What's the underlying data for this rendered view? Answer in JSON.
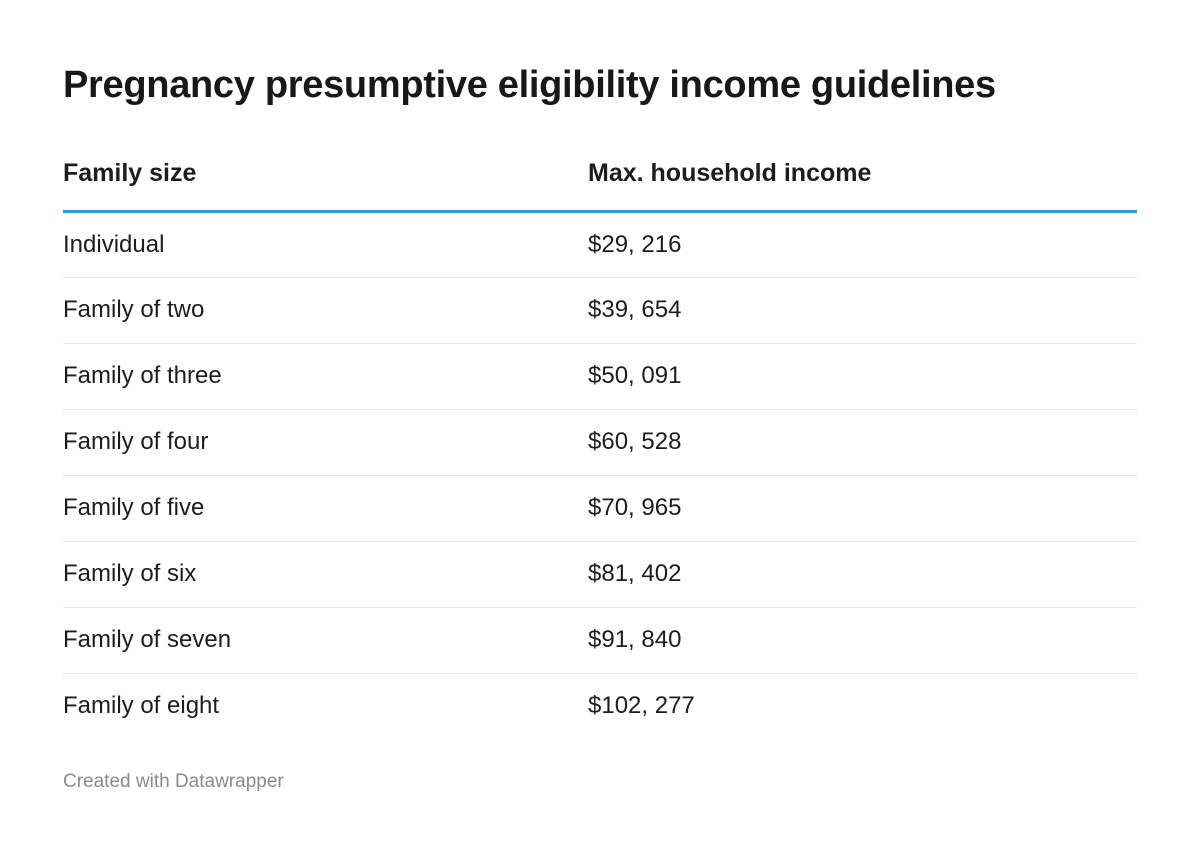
{
  "chart_data": {
    "type": "table",
    "title": "Pregnancy presumptive eligibility income guidelines",
    "columns": [
      "Family size",
      "Max. household income"
    ],
    "rows": [
      [
        "Individual",
        "$29, 216"
      ],
      [
        "Family of two",
        "$39, 654"
      ],
      [
        "Family of three",
        "$50, 091"
      ],
      [
        "Family of four",
        "$60, 528"
      ],
      [
        "Family of five",
        "$70, 965"
      ],
      [
        "Family of six",
        "$81, 402"
      ],
      [
        "Family of seven",
        "$91, 840"
      ],
      [
        "Family of eight",
        "$102, 277"
      ]
    ],
    "header_rule_color": "#2a9fcc"
  },
  "footer": "Created with Datawrapper"
}
